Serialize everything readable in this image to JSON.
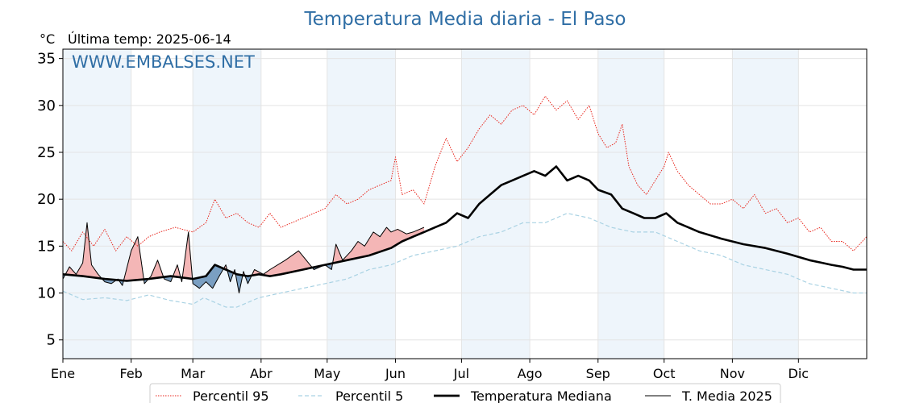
{
  "chart_data": {
    "type": "line",
    "title": "Temperatura Media diaria - El Paso",
    "unit": "°C",
    "last_temp": "Última temp: 2025-06-14",
    "watermark": "WWW.EMBALSES.NET",
    "ylim": [
      3,
      36
    ],
    "yticks": [
      5,
      10,
      15,
      20,
      25,
      30,
      35
    ],
    "xlim": [
      1,
      366
    ],
    "months": [
      "Ene",
      "Feb",
      "Mar",
      "Abr",
      "May",
      "Jun",
      "Jul",
      "Ago",
      "Sep",
      "Oct",
      "Nov",
      "Dic"
    ],
    "month_start_days": [
      1,
      32,
      60,
      91,
      121,
      152,
      182,
      213,
      244,
      274,
      305,
      335
    ],
    "grid": true,
    "legend_placement": "bottom",
    "colors": {
      "p95": "#e8241b",
      "p5": "#a9d2e3",
      "median": "#000000",
      "year": "#000000",
      "above_fill": "#f4b6b6",
      "below_fill": "#7a9fc2",
      "title": "#2f6ea5",
      "band": "#eef5fb"
    },
    "series": [
      {
        "key": "p95",
        "name": "Percentil 95",
        "style": "dotted",
        "x": [
          1,
          5,
          10,
          15,
          20,
          25,
          30,
          35,
          40,
          45,
          52,
          60,
          66,
          70,
          75,
          80,
          85,
          90,
          95,
          100,
          105,
          110,
          115,
          120,
          125,
          130,
          135,
          140,
          145,
          150,
          152,
          155,
          160,
          165,
          170,
          175,
          180,
          185,
          190,
          195,
          200,
          205,
          210,
          215,
          220,
          225,
          230,
          235,
          240,
          244,
          248,
          252,
          255,
          258,
          262,
          266,
          270,
          274,
          276,
          280,
          285,
          290,
          295,
          300,
          305,
          310,
          315,
          320,
          325,
          330,
          335,
          340,
          345,
          350,
          355,
          360,
          366
        ],
        "values": [
          15.5,
          14.5,
          16.5,
          15.0,
          16.8,
          14.5,
          16.0,
          15.0,
          16.0,
          16.5,
          17.0,
          16.5,
          17.5,
          20.0,
          18.0,
          18.5,
          17.5,
          17.0,
          18.5,
          17.0,
          17.5,
          18.0,
          18.5,
          19.0,
          20.5,
          19.5,
          20.0,
          21.0,
          21.5,
          22.0,
          24.5,
          20.5,
          21.0,
          19.5,
          23.5,
          26.5,
          24.0,
          25.5,
          27.5,
          29.0,
          28.0,
          29.5,
          30.0,
          29.0,
          31.0,
          29.5,
          30.5,
          28.5,
          30.0,
          27.0,
          25.5,
          26.0,
          28.0,
          23.5,
          21.5,
          20.5,
          22.0,
          23.5,
          25.0,
          23.0,
          21.5,
          20.5,
          19.5,
          19.5,
          20.0,
          19.0,
          20.5,
          18.5,
          19.0,
          17.5,
          18.0,
          16.5,
          17.0,
          15.5,
          15.5,
          14.5,
          16.0
        ]
      },
      {
        "key": "p5",
        "name": "Percentil 5",
        "style": "dashed",
        "x": [
          1,
          10,
          20,
          30,
          40,
          50,
          60,
          65,
          70,
          75,
          80,
          90,
          100,
          110,
          120,
          130,
          140,
          150,
          160,
          170,
          180,
          190,
          200,
          210,
          220,
          225,
          230,
          240,
          250,
          260,
          270,
          280,
          290,
          300,
          310,
          320,
          330,
          340,
          350,
          360,
          366
        ],
        "values": [
          10.2,
          9.3,
          9.5,
          9.2,
          9.8,
          9.2,
          8.8,
          9.5,
          9.0,
          8.5,
          8.5,
          9.5,
          10.0,
          10.5,
          11.0,
          11.5,
          12.5,
          13.0,
          14.0,
          14.5,
          15.0,
          16.0,
          16.5,
          17.5,
          17.5,
          18.0,
          18.5,
          18.0,
          17.0,
          16.5,
          16.5,
          15.5,
          14.5,
          14.0,
          13.0,
          12.5,
          12.0,
          11.0,
          10.5,
          10.0,
          10.0
        ]
      },
      {
        "key": "median",
        "name": "Temperatura Mediana",
        "style": "solid-thick",
        "x": [
          1,
          10,
          20,
          30,
          40,
          50,
          60,
          66,
          70,
          75,
          80,
          85,
          90,
          95,
          100,
          110,
          120,
          130,
          140,
          150,
          155,
          160,
          165,
          170,
          175,
          180,
          185,
          190,
          195,
          200,
          205,
          210,
          215,
          220,
          225,
          230,
          235,
          240,
          244,
          250,
          255,
          260,
          265,
          270,
          275,
          280,
          285,
          290,
          300,
          310,
          320,
          330,
          340,
          350,
          355,
          360,
          366
        ],
        "values": [
          12.0,
          11.8,
          11.5,
          11.3,
          11.5,
          11.8,
          11.5,
          11.8,
          13.0,
          12.5,
          12.0,
          11.8,
          12.0,
          11.8,
          12.0,
          12.5,
          13.0,
          13.5,
          14.0,
          14.8,
          15.5,
          16.0,
          16.5,
          17.0,
          17.5,
          18.5,
          18.0,
          19.5,
          20.5,
          21.5,
          22.0,
          22.5,
          23.0,
          22.5,
          23.5,
          22.0,
          22.5,
          22.0,
          21.0,
          20.5,
          19.0,
          18.5,
          18.0,
          18.0,
          18.5,
          17.5,
          17.0,
          16.5,
          15.8,
          15.2,
          14.8,
          14.2,
          13.5,
          13.0,
          12.8,
          12.5,
          12.5
        ]
      },
      {
        "key": "year",
        "name": "T. Media 2025",
        "style": "solid-thin",
        "x": [
          1,
          4,
          7,
          10,
          12,
          14,
          17,
          20,
          23,
          26,
          28,
          32,
          35,
          38,
          41,
          44,
          47,
          50,
          53,
          55,
          58,
          60,
          63,
          66,
          69,
          72,
          75,
          77,
          79,
          81,
          83,
          85,
          88,
          92,
          95,
          102,
          108,
          115,
          120,
          123,
          125,
          128,
          132,
          135,
          138,
          142,
          145,
          148,
          150,
          153,
          157,
          160,
          165
        ],
        "values": [
          11.5,
          12.8,
          12.0,
          13.2,
          17.5,
          13.0,
          12.0,
          11.2,
          11.0,
          11.5,
          10.8,
          14.5,
          16.0,
          11.0,
          11.8,
          13.5,
          11.5,
          11.2,
          13.0,
          11.2,
          16.5,
          11.0,
          10.5,
          11.2,
          10.5,
          11.8,
          13.0,
          11.2,
          12.5,
          10.0,
          12.3,
          11.0,
          12.5,
          12.0,
          12.5,
          13.5,
          14.5,
          12.5,
          13.0,
          12.5,
          15.2,
          13.5,
          14.5,
          15.5,
          15.0,
          16.5,
          16.0,
          17.0,
          16.5,
          16.8,
          16.3,
          16.5,
          17.0
        ]
      }
    ]
  }
}
